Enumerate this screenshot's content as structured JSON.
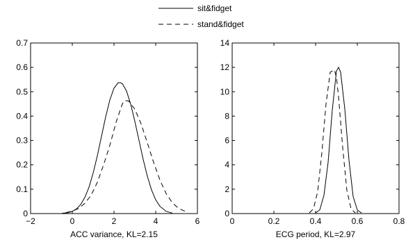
{
  "legend": {
    "entries": [
      {
        "label": "sit&fidget",
        "style": "solid"
      },
      {
        "label": "stand&fidget",
        "style": "dashed"
      }
    ]
  },
  "chart_data": [
    {
      "type": "line",
      "xlabel": "ACC variance, KL=2.15",
      "ylabel": "",
      "xlim": [
        -2,
        6
      ],
      "ylim": [
        0,
        0.7
      ],
      "xticks": [
        -2,
        0,
        2,
        4,
        6
      ],
      "xtick_labels": [
        "−2",
        "0",
        "2",
        "4",
        "6"
      ],
      "yticks": [
        0,
        0.1,
        0.2,
        0.3,
        0.4,
        0.5,
        0.6,
        0.7
      ],
      "ytick_labels": [
        "0",
        "0.1",
        "0.2",
        "0.3",
        "0.4",
        "0.5",
        "0.6",
        "0.7"
      ],
      "grid": false,
      "series": [
        {
          "name": "sit&fidget",
          "style": "solid",
          "x": [
            -0.5,
            -0.2,
            0,
            0.2,
            0.4,
            0.6,
            0.8,
            1.0,
            1.2,
            1.4,
            1.6,
            1.8,
            2.0,
            2.2,
            2.3,
            2.4,
            2.6,
            2.8,
            3.0,
            3.2,
            3.4,
            3.6,
            3.8,
            4.0,
            4.2,
            4.5,
            4.8
          ],
          "y": [
            0.001,
            0.004,
            0.009,
            0.019,
            0.037,
            0.066,
            0.108,
            0.166,
            0.237,
            0.317,
            0.397,
            0.466,
            0.515,
            0.537,
            0.537,
            0.533,
            0.503,
            0.449,
            0.378,
            0.3,
            0.222,
            0.153,
            0.097,
            0.056,
            0.03,
            0.009,
            0.002
          ]
        },
        {
          "name": "stand&fidget",
          "style": "dashed",
          "x": [
            -0.3,
            0,
            0.3,
            0.6,
            0.9,
            1.2,
            1.5,
            1.8,
            2.1,
            2.4,
            2.5,
            2.7,
            3.0,
            3.3,
            3.6,
            3.9,
            4.2,
            4.5,
            4.8,
            5.1,
            5.5
          ],
          "y": [
            0.004,
            0.01,
            0.021,
            0.042,
            0.075,
            0.128,
            0.2,
            0.28,
            0.375,
            0.45,
            0.463,
            0.462,
            0.428,
            0.368,
            0.29,
            0.21,
            0.138,
            0.082,
            0.044,
            0.021,
            0.006
          ]
        }
      ]
    },
    {
      "type": "line",
      "xlabel": "ECG period, KL=2.97",
      "ylabel": "",
      "xlim": [
        0,
        0.8
      ],
      "ylim": [
        0,
        14
      ],
      "xticks": [
        0,
        0.2,
        0.4,
        0.6,
        0.8
      ],
      "xtick_labels": [
        "0",
        "0.2",
        "0.4",
        "0.6",
        "0.8"
      ],
      "yticks": [
        0,
        2,
        4,
        6,
        8,
        10,
        12,
        14
      ],
      "ytick_labels": [
        "0",
        "2",
        "4",
        "6",
        "8",
        "10",
        "12",
        "14"
      ],
      "grid": false,
      "series": [
        {
          "name": "sit&fidget",
          "style": "solid",
          "x": [
            0.4,
            0.42,
            0.44,
            0.46,
            0.48,
            0.5,
            0.51,
            0.52,
            0.54,
            0.56,
            0.58,
            0.6,
            0.62
          ],
          "y": [
            0.05,
            0.3,
            1.5,
            4.2,
            8.5,
            11.7,
            12.0,
            11.6,
            8.6,
            4.4,
            1.4,
            0.3,
            0.05
          ]
        },
        {
          "name": "stand&fidget",
          "style": "dashed",
          "x": [
            0.37,
            0.39,
            0.41,
            0.43,
            0.45,
            0.47,
            0.49,
            0.5,
            0.51,
            0.53,
            0.55,
            0.57,
            0.59
          ],
          "y": [
            0.05,
            0.4,
            1.8,
            5.0,
            9.0,
            11.6,
            11.8,
            11.2,
            9.6,
            5.4,
            1.9,
            0.4,
            0.05
          ]
        }
      ]
    }
  ]
}
